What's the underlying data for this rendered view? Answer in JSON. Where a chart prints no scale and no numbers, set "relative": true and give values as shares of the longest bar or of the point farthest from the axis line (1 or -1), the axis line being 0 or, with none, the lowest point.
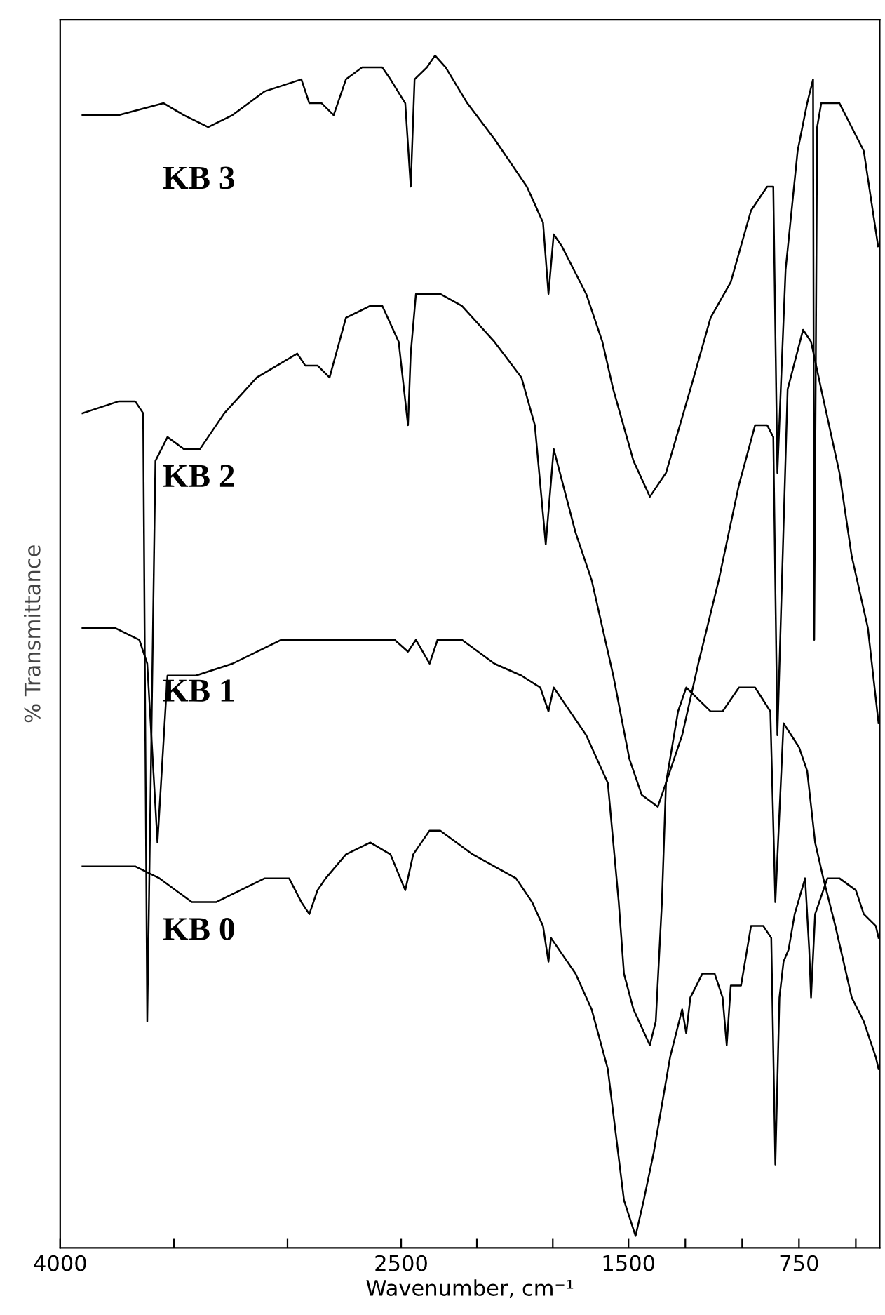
{
  "chart_data": {
    "type": "line",
    "relative": true,
    "xlabel": "Wavenumber, cm⁻¹",
    "ylabel": "% Transmittance",
    "xlim": [
      4000,
      395
    ],
    "xticks": [
      4000,
      {
        "value": 3500,
        "label": null
      },
      {
        "value": 3000,
        "label": null
      },
      2500,
      {
        "value": 2167,
        "label": null
      },
      {
        "value": 1833,
        "label": null
      },
      1500,
      {
        "value": 1250,
        "label": null
      },
      {
        "value": 1000,
        "label": null
      },
      750,
      {
        "value": 500,
        "label": null
      }
    ],
    "grid": false,
    "legend": false,
    "marker": "none",
    "line_style": "solid",
    "tick_labels": "x",
    "series": [
      {
        "name": "KB 3",
        "color": "#000000",
        "x": [
          3902,
          3742,
          3545,
          3456,
          3349,
          3242,
          3100,
          2939,
          2904,
          2850,
          2797,
          2743,
          2672,
          2583,
          2547,
          2482,
          2458,
          2441,
          2387,
          2351,
          2304,
          2209,
          2090,
          1947,
          1876,
          1852,
          1829,
          1793,
          1686,
          1615,
          1567,
          1478,
          1406,
          1335,
          1228,
          1139,
          1050,
          961,
          890,
          863,
          845,
          809,
          756,
          714,
          688,
          683,
          670,
          652,
          572,
          465,
          402
        ],
        "values": [
          0.95,
          0.95,
          0.96,
          0.95,
          0.94,
          0.95,
          0.97,
          0.98,
          0.96,
          0.96,
          0.95,
          0.98,
          0.99,
          0.99,
          0.98,
          0.96,
          0.89,
          0.98,
          0.99,
          1,
          0.99,
          0.96,
          0.93,
          0.89,
          0.86,
          0.8,
          0.85,
          0.84,
          0.8,
          0.76,
          0.72,
          0.66,
          0.63,
          0.65,
          0.72,
          0.78,
          0.81,
          0.87,
          0.89,
          0.89,
          0.65,
          0.82,
          0.92,
          0.96,
          0.98,
          0.51,
          0.94,
          0.96,
          0.96,
          0.92,
          0.84
        ]
      },
      {
        "name": "KB 2",
        "color": "#000000",
        "x": [
          3902,
          3742,
          3670,
          3635,
          3617,
          3581,
          3528,
          3456,
          3385,
          3278,
          3135,
          2957,
          2922,
          2868,
          2815,
          2743,
          2636,
          2583,
          2511,
          2470,
          2458,
          2435,
          2328,
          2233,
          2090,
          1971,
          1912,
          1864,
          1829,
          1733,
          1662,
          1567,
          1496,
          1442,
          1371,
          1335,
          1264,
          1193,
          1103,
          1014,
          943,
          890,
          863,
          845,
          800,
          732,
          697,
          652,
          572,
          518,
          447,
          400
        ],
        "values": [
          0.7,
          0.71,
          0.71,
          0.7,
          0.19,
          0.66,
          0.68,
          0.67,
          0.67,
          0.7,
          0.73,
          0.75,
          0.74,
          0.74,
          0.73,
          0.78,
          0.79,
          0.79,
          0.76,
          0.69,
          0.75,
          0.8,
          0.8,
          0.79,
          0.76,
          0.73,
          0.69,
          0.59,
          0.67,
          0.6,
          0.56,
          0.48,
          0.41,
          0.38,
          0.37,
          0.39,
          0.43,
          0.49,
          0.56,
          0.64,
          0.69,
          0.69,
          0.68,
          0.43,
          0.72,
          0.77,
          0.76,
          0.72,
          0.65,
          0.58,
          0.52,
          0.44
        ]
      },
      {
        "name": "KB 1",
        "color": "#000000",
        "x": [
          3902,
          3759,
          3652,
          3617,
          3572,
          3528,
          3403,
          3242,
          3135,
          3028,
          2922,
          2815,
          2725,
          2601,
          2529,
          2470,
          2435,
          2375,
          2340,
          2233,
          2090,
          1971,
          1888,
          1852,
          1829,
          1686,
          1591,
          1543,
          1520,
          1478,
          1406,
          1380,
          1353,
          1335,
          1282,
          1246,
          1193,
          1139,
          1086,
          1014,
          943,
          876,
          854,
          818,
          750,
          714,
          679,
          643,
          590,
          518,
          465,
          412,
          400
        ],
        "values": [
          0.52,
          0.52,
          0.51,
          0.49,
          0.34,
          0.48,
          0.48,
          0.49,
          0.5,
          0.51,
          0.51,
          0.51,
          0.51,
          0.51,
          0.51,
          0.5,
          0.51,
          0.49,
          0.51,
          0.51,
          0.49,
          0.48,
          0.47,
          0.45,
          0.47,
          0.43,
          0.39,
          0.29,
          0.23,
          0.2,
          0.17,
          0.19,
          0.29,
          0.39,
          0.45,
          0.47,
          0.46,
          0.45,
          0.45,
          0.47,
          0.47,
          0.45,
          0.29,
          0.44,
          0.42,
          0.4,
          0.34,
          0.31,
          0.27,
          0.21,
          0.19,
          0.16,
          0.15
        ]
      },
      {
        "name": "KB 0",
        "color": "#000000",
        "x": [
          3902,
          3670,
          3563,
          3421,
          3314,
          3100,
          2993,
          2939,
          2904,
          2868,
          2832,
          2743,
          2636,
          2547,
          2482,
          2447,
          2375,
          2328,
          2185,
          1995,
          1924,
          1876,
          1852,
          1841,
          1733,
          1662,
          1591,
          1520,
          1469,
          1433,
          1389,
          1317,
          1264,
          1246,
          1228,
          1175,
          1121,
          1086,
          1068,
          1050,
          1005,
          961,
          907,
          872,
          854,
          836,
          818,
          796,
          769,
          723,
          705,
          697,
          679,
          625,
          572,
          500,
          465,
          412,
          400
        ],
        "values": [
          0.32,
          0.32,
          0.31,
          0.29,
          0.29,
          0.31,
          0.31,
          0.29,
          0.28,
          0.3,
          0.31,
          0.33,
          0.34,
          0.33,
          0.3,
          0.33,
          0.35,
          0.35,
          0.33,
          0.31,
          0.29,
          0.27,
          0.24,
          0.26,
          0.23,
          0.2,
          0.15,
          0.04,
          0.01,
          0.04,
          0.08,
          0.16,
          0.2,
          0.18,
          0.21,
          0.23,
          0.23,
          0.21,
          0.17,
          0.22,
          0.22,
          0.27,
          0.27,
          0.26,
          0.07,
          0.21,
          0.24,
          0.25,
          0.28,
          0.31,
          0.25,
          0.21,
          0.28,
          0.31,
          0.31,
          0.3,
          0.28,
          0.27,
          0.26
        ]
      }
    ]
  }
}
